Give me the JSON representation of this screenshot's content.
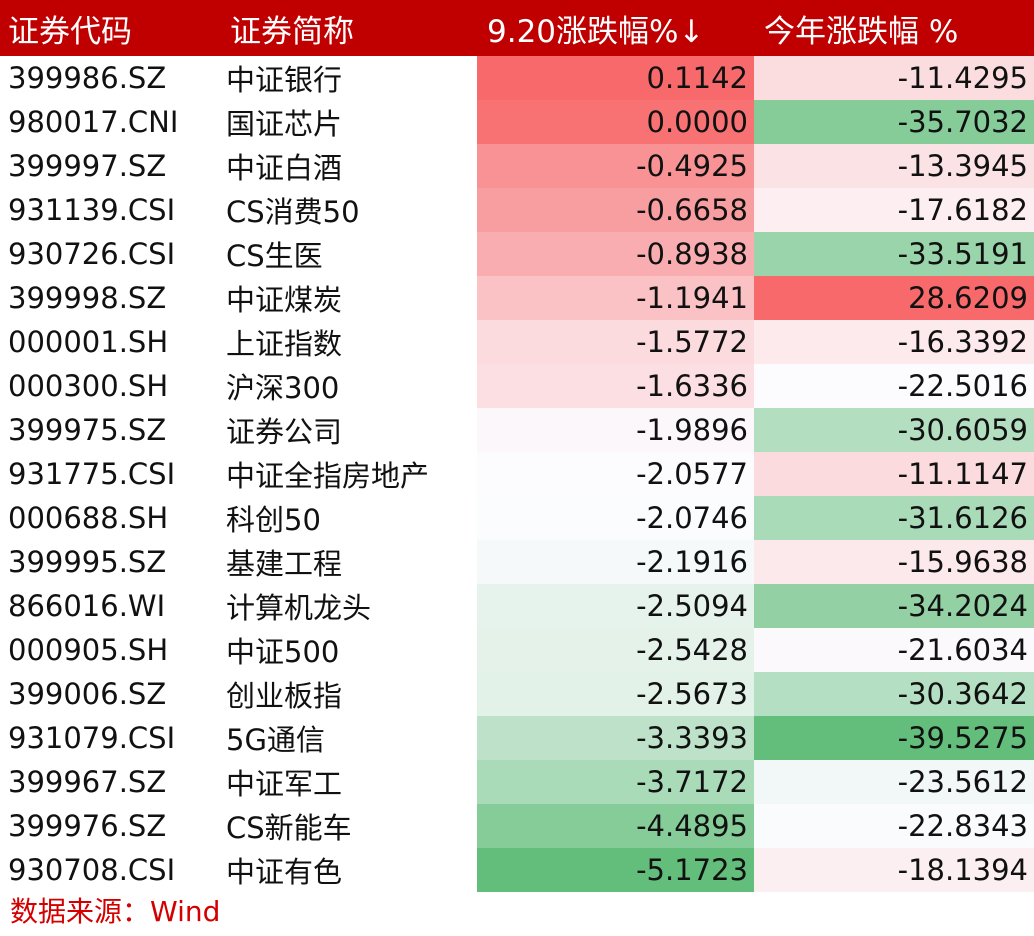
{
  "table": {
    "headers": [
      "证券代码",
      "证券简称",
      "9.20涨跌幅%↓",
      "今年涨跌幅 %"
    ],
    "rows": [
      {
        "code": "399986.SZ",
        "name": "中证银行",
        "day": "0.1142",
        "ytd": "-11.4295"
      },
      {
        "code": "980017.CNI",
        "name": "国证芯片",
        "day": "0.0000",
        "ytd": "-35.7032"
      },
      {
        "code": "399997.SZ",
        "name": "中证白酒",
        "day": "-0.4925",
        "ytd": "-13.3945"
      },
      {
        "code": "931139.CSI",
        "name": "CS消费50",
        "day": "-0.6658",
        "ytd": "-17.6182"
      },
      {
        "code": "930726.CSI",
        "name": "CS生医",
        "day": "-0.8938",
        "ytd": "-33.5191"
      },
      {
        "code": "399998.SZ",
        "name": "中证煤炭",
        "day": "-1.1941",
        "ytd": "28.6209"
      },
      {
        "code": "000001.SH",
        "name": "上证指数",
        "day": "-1.5772",
        "ytd": "-16.3392"
      },
      {
        "code": "000300.SH",
        "name": "沪深300",
        "day": "-1.6336",
        "ytd": "-22.5016"
      },
      {
        "code": "399975.SZ",
        "name": "证券公司",
        "day": "-1.9896",
        "ytd": "-30.6059"
      },
      {
        "code": "931775.CSI",
        "name": "中证全指房地产",
        "day": "-2.0577",
        "ytd": "-11.1147"
      },
      {
        "code": "000688.SH",
        "name": "科创50",
        "day": "-2.0746",
        "ytd": "-31.6126"
      },
      {
        "code": "399995.SZ",
        "name": "基建工程",
        "day": "-2.1916",
        "ytd": "-15.9638"
      },
      {
        "code": "866016.WI",
        "name": "计算机龙头",
        "day": "-2.5094",
        "ytd": "-34.2024"
      },
      {
        "code": "000905.SH",
        "name": "中证500",
        "day": "-2.5428",
        "ytd": "-21.6034"
      },
      {
        "code": "399006.SZ",
        "name": "创业板指",
        "day": "-2.5673",
        "ytd": "-30.3642"
      },
      {
        "code": "931079.CSI",
        "name": "5G通信",
        "day": "-3.3393",
        "ytd": "-39.5275"
      },
      {
        "code": "399967.SZ",
        "name": "中证军工",
        "day": "-3.7172",
        "ytd": "-23.5612"
      },
      {
        "code": "399976.SZ",
        "name": "CS新能车",
        "day": "-4.4895",
        "ytd": "-22.8343"
      },
      {
        "code": "930708.CSI",
        "name": "中证有色",
        "day": "-5.1723",
        "ytd": "-18.1394"
      }
    ]
  },
  "source": "数据来源：Wind",
  "colors": {
    "header_bg": "#c00000",
    "header_text": "#ffffff",
    "heat_high": "#f8696b",
    "heat_mid": "#fcfcff",
    "heat_low": "#63be7b",
    "source_text": "#d40000"
  }
}
